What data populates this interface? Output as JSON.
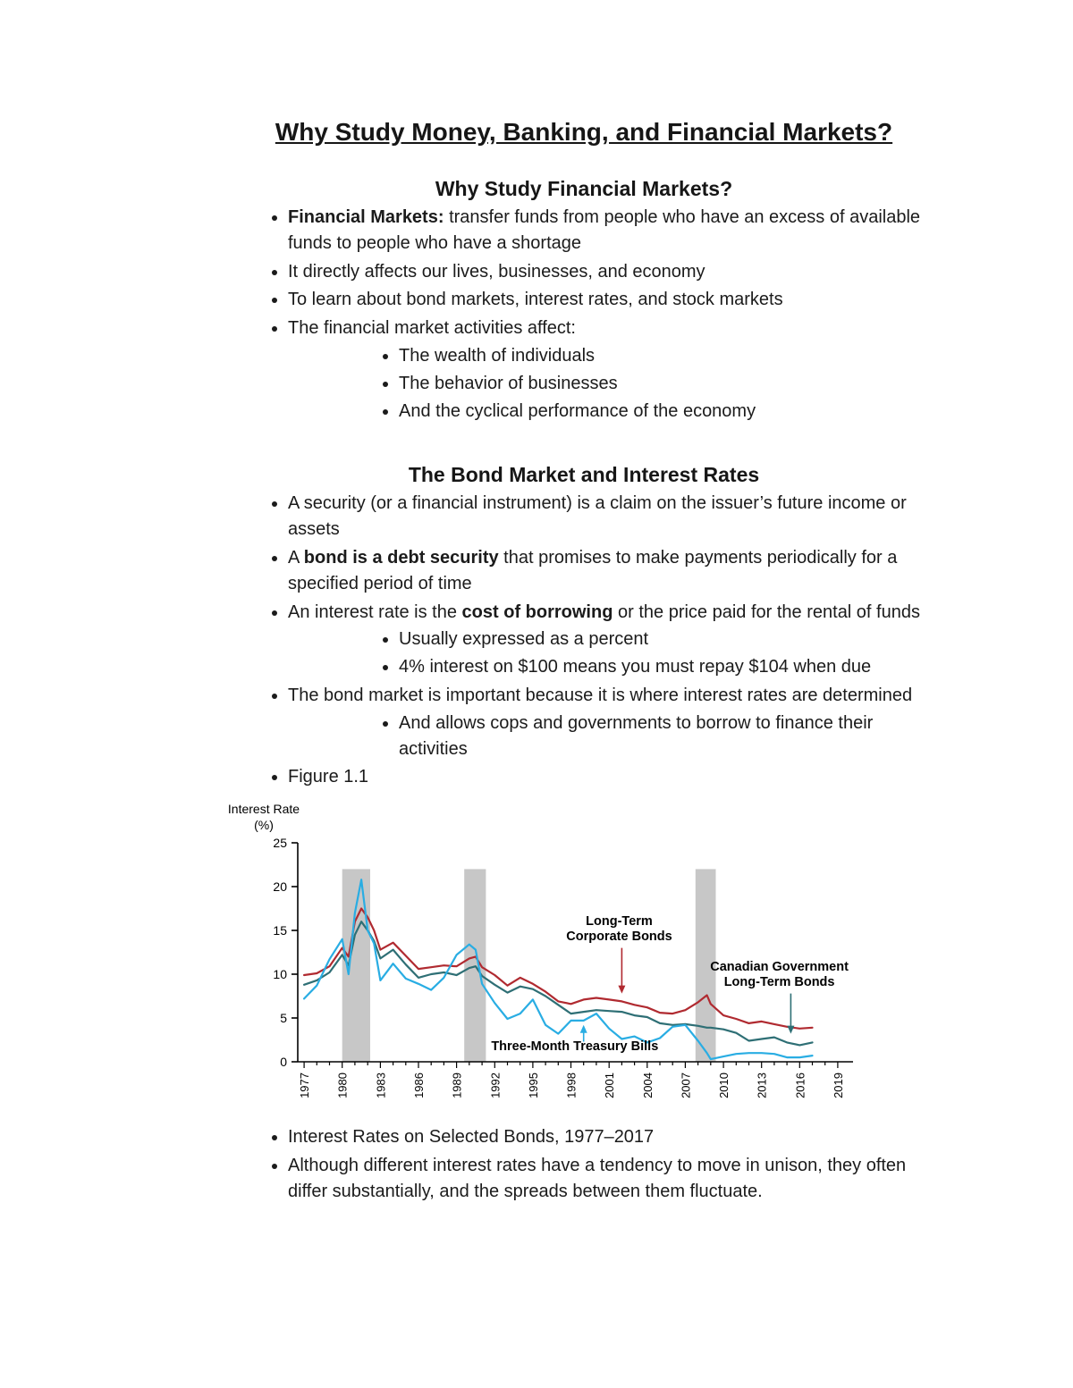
{
  "title": "Why Study Money, Banking, and Financial Markets?",
  "section1": {
    "heading": "Why Study Financial Markets?",
    "b1_bold": "Financial Markets:",
    "b1_text": " transfer funds from people who have an excess of available funds to people who have a shortage",
    "b2": "It directly affects our lives, businesses, and economy",
    "b3": "To learn about bond markets, interest rates, and stock markets",
    "b4": "The financial market activities affect:",
    "b4_sub": [
      "The wealth of individuals",
      "The behavior of businesses",
      "And the cyclical performance of the economy"
    ]
  },
  "section2": {
    "heading": "The Bond Market and Interest Rates",
    "b1": "A security (or a financial instrument) is a claim on the issuer’s future income or assets",
    "b2_pre": "A ",
    "b2_bold": "bond is a debt security",
    "b2_post": " that promises to make payments periodically for a specified period of time",
    "b3_pre": "An interest rate is the ",
    "b3_bold": "cost of borrowing",
    "b3_post": " or the price paid for the rental of funds",
    "b3_sub": [
      "Usually expressed as a percent",
      "4% interest on $100 means you must repay $104 when due"
    ],
    "b4": "The bond market is important because it is where interest rates are determined",
    "b4_sub": [
      "And allows cops and governments to borrow to finance their activities"
    ],
    "b5": "Figure 1.1"
  },
  "closing": {
    "b1": "Interest Rates on Selected Bonds, 1977–2017",
    "b2": "Although different interest rates have a tendency to move in unison, they often differ substantially, and the spreads between them fluctuate."
  },
  "chart_data": {
    "type": "line",
    "title": "Interest Rates on Selected Bonds, 1977–2017",
    "ylabel_lines": [
      "Interest Rate",
      "(%)"
    ],
    "ylim": [
      0,
      25
    ],
    "xlim": [
      1976.5,
      2020.2
    ],
    "yticks": [
      0,
      5,
      10,
      15,
      20,
      25
    ],
    "xticks": [
      1977,
      1980,
      1983,
      1986,
      1989,
      1992,
      1995,
      1998,
      2001,
      2004,
      2007,
      2010,
      2013,
      2016,
      2019
    ],
    "grid": false,
    "recession_band_color": "#c7c7c7",
    "recession_band_top": 22,
    "recession_bands": [
      [
        1980.0,
        1982.2
      ],
      [
        1989.6,
        1991.3
      ],
      [
        2007.8,
        2009.4
      ]
    ],
    "x": [
      1977,
      1978,
      1979,
      1980,
      1980.5,
      1981,
      1981.5,
      1982,
      1982.5,
      1983,
      1984,
      1985,
      1986,
      1987,
      1988,
      1989,
      1990,
      1990.5,
      1991,
      1992,
      1993,
      1994,
      1995,
      1996,
      1997,
      1998,
      1999,
      2000,
      2001,
      2002,
      2003,
      2004,
      2005,
      2006,
      2007,
      2008,
      2008.7,
      2009,
      2010,
      2011,
      2012,
      2013,
      2014,
      2015,
      2016,
      2017
    ],
    "series": [
      {
        "name": "Long-Term Corporate Bonds",
        "color": "#b02a30",
        "values": [
          9.9,
          10.1,
          10.9,
          13.0,
          12.0,
          16.0,
          17.5,
          16.5,
          15.0,
          12.8,
          13.6,
          12.1,
          10.6,
          10.8,
          11.0,
          10.9,
          11.8,
          12.0,
          10.8,
          9.9,
          8.7,
          9.6,
          8.9,
          8.0,
          6.9,
          6.6,
          7.1,
          7.3,
          7.1,
          6.9,
          6.5,
          6.2,
          5.6,
          5.5,
          5.9,
          6.8,
          7.6,
          6.6,
          5.3,
          4.9,
          4.4,
          4.6,
          4.3,
          4.0,
          3.8,
          3.9
        ]
      },
      {
        "name": "Canadian Government Long-Term Bonds",
        "color": "#2e6f75",
        "values": [
          8.8,
          9.3,
          10.2,
          12.2,
          11.0,
          14.5,
          16.0,
          15.0,
          13.8,
          11.8,
          12.8,
          11.1,
          9.6,
          10.0,
          10.2,
          9.9,
          10.7,
          10.9,
          9.8,
          8.8,
          7.9,
          8.6,
          8.3,
          7.5,
          6.5,
          5.5,
          5.7,
          5.9,
          5.8,
          5.7,
          5.3,
          5.1,
          4.4,
          4.2,
          4.3,
          4.1,
          3.9,
          3.9,
          3.7,
          3.3,
          2.4,
          2.6,
          2.8,
          2.2,
          1.9,
          2.2
        ]
      },
      {
        "name": "Three-Month Treasury Bills",
        "color": "#29ade3",
        "values": [
          7.2,
          8.7,
          11.7,
          14.0,
          10.0,
          17.0,
          20.8,
          15.0,
          13.5,
          9.3,
          11.2,
          9.5,
          8.9,
          8.2,
          9.6,
          12.2,
          13.4,
          12.8,
          8.9,
          6.7,
          4.9,
          5.5,
          7.1,
          4.2,
          3.2,
          4.7,
          4.7,
          5.5,
          3.8,
          2.6,
          2.9,
          2.2,
          2.7,
          4.0,
          4.2,
          2.4,
          1.0,
          0.3,
          0.6,
          0.9,
          1.0,
          1.0,
          0.9,
          0.5,
          0.5,
          0.7
        ]
      }
    ],
    "annotations": [
      {
        "lines": [
          "Long-Term",
          "Corporate Bonds"
        ],
        "color": "#b02a30",
        "tx": 2001.8,
        "ty": 15.6,
        "arrow": {
          "x1": 2002.0,
          "y1": 13.0,
          "x2": 2002.0,
          "y2": 7.8
        }
      },
      {
        "lines": [
          "Canadian Government",
          "Long-Term Bonds"
        ],
        "color": "#2e6f75",
        "tx": 2014.4,
        "ty": 10.4,
        "arrow": {
          "x1": 2015.3,
          "y1": 7.8,
          "x2": 2015.3,
          "y2": 3.2
        }
      },
      {
        "lines": [
          "Three-Month Treasury Bills"
        ],
        "color": "#29ade3",
        "tx": 1998.3,
        "ty": 1.35,
        "arrow": {
          "x1": 1999.0,
          "y1": 2.3,
          "x2": 1999.0,
          "y2": 4.2
        }
      }
    ]
  }
}
